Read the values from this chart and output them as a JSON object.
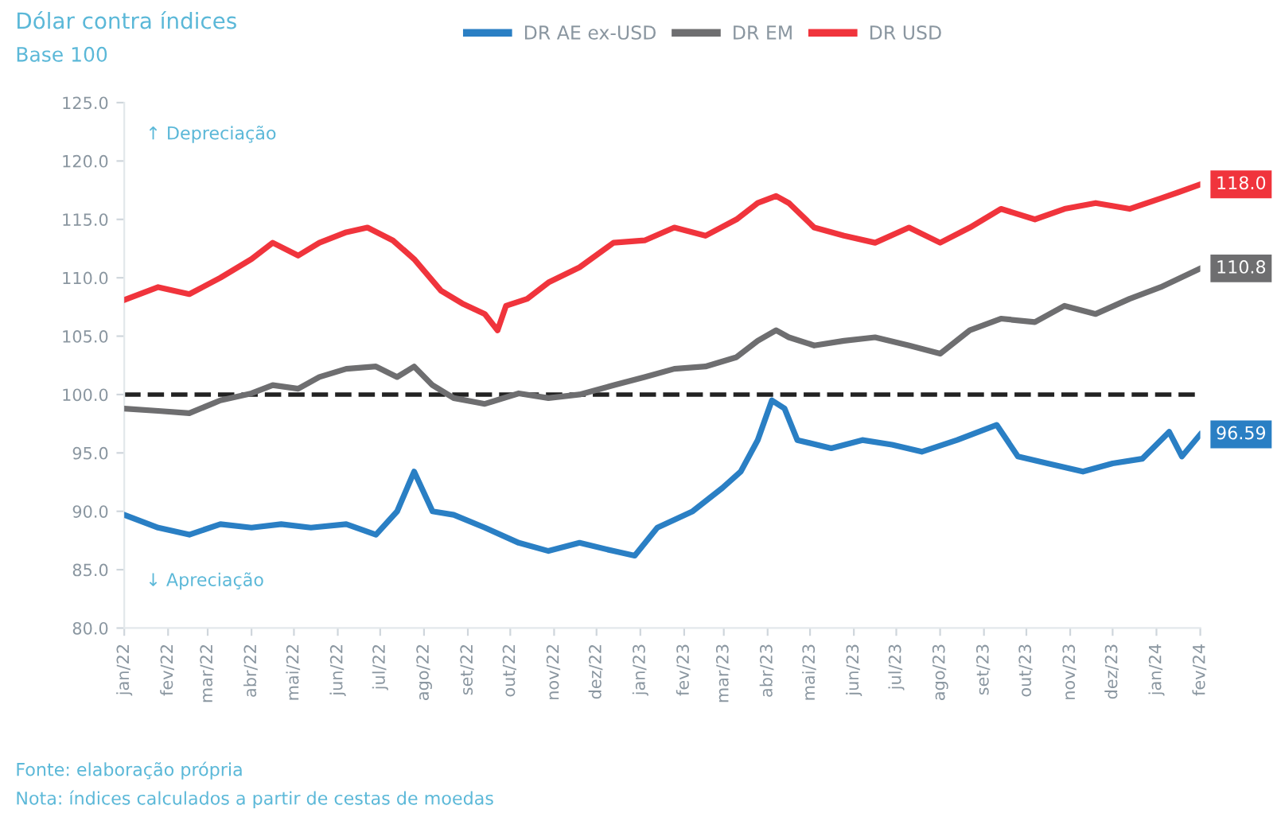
{
  "chart_data": {
    "type": "line",
    "title": "Dólar contra índices",
    "subtitle": "Base 100",
    "xlim": [
      "2022-01-01",
      "2024-02-01"
    ],
    "xticks": [
      {
        "value": "2022-01",
        "label": "jan/22"
      },
      {
        "value": "2022-02",
        "label": "fev/22"
      },
      {
        "value": "2022-03",
        "label": "mar/22"
      },
      {
        "value": "2022-04",
        "label": "abr/22"
      },
      {
        "value": "2022-05",
        "label": "mai/22"
      },
      {
        "value": "2022-06",
        "label": "jun/22"
      },
      {
        "value": "2022-07",
        "label": "jul/22"
      },
      {
        "value": "2022-08",
        "label": "ago/22"
      },
      {
        "value": "2022-09",
        "label": "set/22"
      },
      {
        "value": "2022-10",
        "label": "out/22"
      },
      {
        "value": "2022-11",
        "label": "nov/22"
      },
      {
        "value": "2022-12",
        "label": "dez/22"
      },
      {
        "value": "2023-01",
        "label": "jan/23"
      },
      {
        "value": "2023-02",
        "label": "fev/23"
      },
      {
        "value": "2023-03",
        "label": "mar/23"
      },
      {
        "value": "2023-04",
        "label": "abr/23"
      },
      {
        "value": "2023-05",
        "label": "mai/23"
      },
      {
        "value": "2023-06",
        "label": "jun/23"
      },
      {
        "value": "2023-07",
        "label": "jul/23"
      },
      {
        "value": "2023-08",
        "label": "ago/23"
      },
      {
        "value": "2023-09",
        "label": "set/23"
      },
      {
        "value": "2023-10",
        "label": "out/23"
      },
      {
        "value": "2023-11",
        "label": "nov/23"
      },
      {
        "value": "2023-12",
        "label": "dez/23"
      },
      {
        "value": "2024-01",
        "label": "jan/24"
      },
      {
        "value": "2024-02",
        "label": "fev/24"
      }
    ],
    "ylim": [
      80,
      125
    ],
    "yticks": [
      {
        "value": 80,
        "label": "80.0"
      },
      {
        "value": 85,
        "label": "85.0"
      },
      {
        "value": 90,
        "label": "90.0"
      },
      {
        "value": 95,
        "label": "95.0"
      },
      {
        "value": 100,
        "label": "100.0"
      },
      {
        "value": 105,
        "label": "105.0"
      },
      {
        "value": 110,
        "label": "110.0"
      },
      {
        "value": 115,
        "label": "115.0"
      },
      {
        "value": 120,
        "label": "120.0"
      },
      {
        "value": 125,
        "label": "125.0"
      }
    ],
    "grid": false,
    "legend": "top",
    "line_style": "solid",
    "marker": "none",
    "ref_lines": [
      {
        "axis": "y",
        "value": 100,
        "label": null,
        "color": "#222222",
        "line_style": "dashed"
      }
    ],
    "annotations": [
      "↑ Depreciação",
      "↓ Apreciação",
      "Fonte: elaboração própria",
      "Nota: índices calculados a partir de cestas de moedas"
    ],
    "series": [
      {
        "name": "DR AE ex-USD",
        "color": "#2a7fc4",
        "x": [
          "2022-01-01",
          "2022-01-25",
          "2022-02-16",
          "2022-03-10",
          "2022-04-01",
          "2022-04-22",
          "2022-05-13",
          "2022-06-07",
          "2022-06-28",
          "2022-07-13",
          "2022-07-25",
          "2022-08-07",
          "2022-08-22",
          "2022-09-13",
          "2022-10-07",
          "2022-10-28",
          "2022-11-19",
          "2022-12-13",
          "2022-12-28",
          "2023-01-13",
          "2023-02-07",
          "2023-02-28",
          "2023-03-13",
          "2023-03-25",
          "2023-04-04",
          "2023-04-13",
          "2023-04-22",
          "2023-05-16",
          "2023-06-07",
          "2023-06-28",
          "2023-07-19",
          "2023-08-13",
          "2023-09-10",
          "2023-09-25",
          "2023-10-16",
          "2023-11-10",
          "2023-12-01",
          "2023-12-22",
          "2024-01-10",
          "2024-01-19",
          "2024-02-01"
        ],
        "values": [
          89.7,
          88.6,
          88.0,
          88.9,
          88.6,
          88.9,
          88.6,
          88.9,
          88.0,
          90.0,
          93.4,
          90.0,
          89.7,
          88.6,
          87.3,
          86.6,
          87.3,
          86.6,
          86.2,
          88.6,
          90.0,
          92.0,
          93.4,
          96.1,
          99.5,
          98.8,
          96.1,
          95.4,
          96.1,
          95.7,
          95.1,
          96.1,
          97.4,
          94.7,
          94.1,
          93.4,
          94.1,
          94.5,
          96.8,
          94.7,
          96.59
        ],
        "value_labels": [
          null,
          null,
          null,
          null,
          null,
          null,
          null,
          null,
          null,
          null,
          null,
          null,
          null,
          null,
          null,
          null,
          null,
          null,
          null,
          null,
          null,
          null,
          null,
          null,
          null,
          null,
          null,
          null,
          null,
          null,
          null,
          null,
          null,
          null,
          null,
          null,
          null,
          null,
          null,
          null,
          "96.59"
        ]
      },
      {
        "name": "DR EM",
        "color": "#6e6e70",
        "x": [
          "2022-01-01",
          "2022-01-25",
          "2022-02-16",
          "2022-03-10",
          "2022-04-01",
          "2022-04-16",
          "2022-05-04",
          "2022-05-19",
          "2022-06-07",
          "2022-06-28",
          "2022-07-13",
          "2022-07-25",
          "2022-08-07",
          "2022-08-22",
          "2022-09-13",
          "2022-10-07",
          "2022-10-28",
          "2022-11-19",
          "2022-12-13",
          "2023-01-04",
          "2023-01-25",
          "2023-02-16",
          "2023-03-10",
          "2023-03-25",
          "2023-04-07",
          "2023-04-16",
          "2023-05-04",
          "2023-05-25",
          "2023-06-16",
          "2023-07-10",
          "2023-08-01",
          "2023-08-22",
          "2023-09-13",
          "2023-10-07",
          "2023-10-28",
          "2023-11-19",
          "2023-12-13",
          "2024-01-04",
          "2024-02-01"
        ],
        "values": [
          98.8,
          98.6,
          98.4,
          99.5,
          100.1,
          100.8,
          100.5,
          101.5,
          102.2,
          102.4,
          101.5,
          102.4,
          100.8,
          99.7,
          99.2,
          100.1,
          99.7,
          100.0,
          100.8,
          101.5,
          102.2,
          102.4,
          103.2,
          104.6,
          105.5,
          104.9,
          104.2,
          104.6,
          104.9,
          104.2,
          103.5,
          105.5,
          106.5,
          106.2,
          107.6,
          106.9,
          108.2,
          109.2,
          110.8
        ],
        "value_labels": [
          null,
          null,
          null,
          null,
          null,
          null,
          null,
          null,
          null,
          null,
          null,
          null,
          null,
          null,
          null,
          null,
          null,
          null,
          null,
          null,
          null,
          null,
          null,
          null,
          null,
          null,
          null,
          null,
          null,
          null,
          null,
          null,
          null,
          null,
          null,
          null,
          null,
          null,
          "110.8"
        ]
      },
      {
        "name": "DR USD",
        "color": "#f0343c",
        "x": [
          "2022-01-01",
          "2022-01-25",
          "2022-02-16",
          "2022-03-10",
          "2022-04-01",
          "2022-04-16",
          "2022-05-04",
          "2022-05-19",
          "2022-06-07",
          "2022-06-22",
          "2022-07-10",
          "2022-07-25",
          "2022-08-13",
          "2022-08-28",
          "2022-09-13",
          "2022-09-22",
          "2022-09-28",
          "2022-10-13",
          "2022-10-28",
          "2022-11-19",
          "2022-12-13",
          "2023-01-04",
          "2023-01-25",
          "2023-02-16",
          "2023-03-10",
          "2023-03-25",
          "2023-04-07",
          "2023-04-16",
          "2023-05-04",
          "2023-05-25",
          "2023-06-16",
          "2023-07-10",
          "2023-08-01",
          "2023-08-22",
          "2023-09-13",
          "2023-10-07",
          "2023-10-28",
          "2023-11-19",
          "2023-12-13",
          "2024-01-04",
          "2024-01-16",
          "2024-02-01"
        ],
        "values": [
          108.1,
          109.2,
          108.6,
          110.0,
          111.6,
          113.0,
          111.9,
          113.0,
          113.9,
          114.3,
          113.2,
          111.6,
          108.9,
          107.8,
          106.9,
          105.5,
          107.6,
          108.2,
          109.6,
          110.9,
          113.0,
          113.2,
          114.3,
          113.6,
          115.0,
          116.4,
          117.0,
          116.4,
          114.3,
          113.6,
          113.0,
          114.3,
          113.0,
          114.3,
          115.9,
          115.0,
          115.9,
          116.4,
          115.9,
          116.8,
          117.3,
          118.0
        ],
        "value_labels": [
          null,
          null,
          null,
          null,
          null,
          null,
          null,
          null,
          null,
          null,
          null,
          null,
          null,
          null,
          null,
          null,
          null,
          null,
          null,
          null,
          null,
          null,
          null,
          null,
          null,
          null,
          null,
          null,
          null,
          null,
          null,
          null,
          null,
          null,
          null,
          null,
          null,
          null,
          null,
          null,
          null,
          "118.0"
        ]
      }
    ]
  }
}
